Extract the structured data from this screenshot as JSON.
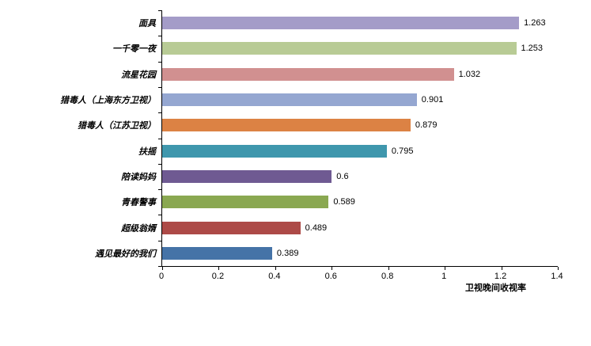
{
  "chart_data": {
    "type": "bar",
    "orientation": "horizontal",
    "title": "",
    "xlabel": "卫视晚间收视率",
    "ylabel": "",
    "xlim": [
      0,
      1.4
    ],
    "x_ticks": [
      "0",
      "0.2",
      "0.4",
      "0.6",
      "0.8",
      "1",
      "1.2",
      "1.4"
    ],
    "grid": false,
    "legend": "none",
    "categories": [
      "面具",
      "一千零一夜",
      "流星花园",
      "猎毒人（上海东方卫视）",
      "猎毒人（江苏卫视）",
      "扶摇",
      "陪读妈妈",
      "青春警事",
      "超级翁婿",
      "遇见最好的我们"
    ],
    "values": [
      1.263,
      1.253,
      1.032,
      0.901,
      0.879,
      0.795,
      0.6,
      0.589,
      0.489,
      0.389
    ],
    "value_labels": [
      "1.263",
      "1.253",
      "1.032",
      "0.901",
      "0.879",
      "0.795",
      "0.6",
      "0.589",
      "0.489",
      "0.389"
    ],
    "bar_colors": [
      "#a49cc8",
      "#b8cb95",
      "#d19090",
      "#95a7d1",
      "#dc8244",
      "#3f97ad",
      "#6f5a92",
      "#8aa851",
      "#ad4a47",
      "#4573a7"
    ],
    "colors": {
      "axis_line": "#000000",
      "text": "#000000",
      "background": "#ffffff"
    }
  }
}
